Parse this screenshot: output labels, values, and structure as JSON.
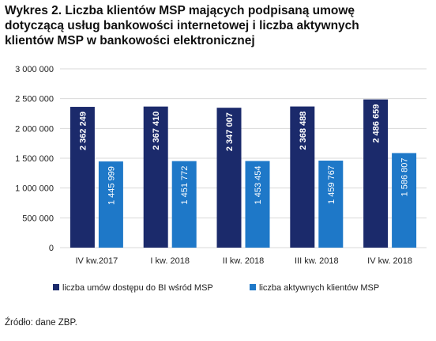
{
  "title_lines": [
    "Wykres 2. Liczba klientów MSP mających podpisaną umowę",
    "dotyczącą usług bankowości internetowej i liczba aktywnych",
    "klientów MSP w bankowości elektronicznej"
  ],
  "source": "Źródło: dane ZBP.",
  "colors": {
    "series1": "#1b2a6b",
    "series2": "#1e78c8",
    "grid": "#d9d9d9",
    "plot_bg": "#ffffff"
  },
  "chart_data": {
    "type": "bar",
    "categories": [
      "IV kw.2017",
      "I kw. 2018",
      "II  kw. 2018",
      "III kw. 2018",
      "IV kw. 2018"
    ],
    "series": [
      {
        "name": "liczba umów dostępu do BI wśród MSP",
        "values": [
          2362249,
          2367410,
          2347007,
          2368488,
          2486659
        ],
        "labels": [
          "2 362 249",
          "2 367 410",
          "2 347 007",
          "2 368 488",
          "2 486 659"
        ]
      },
      {
        "name": "liczba aktywnych klientów MSP",
        "values": [
          1445999,
          1451772,
          1453454,
          1459767,
          1586807
        ],
        "labels": [
          "1 445 999",
          "1 451 772",
          "1 453 454",
          "1 459 767",
          "1 586 807"
        ]
      }
    ],
    "ylim": [
      0,
      3000000
    ],
    "yticks": [
      0,
      500000,
      1000000,
      1500000,
      2000000,
      2500000,
      3000000
    ],
    "ytick_labels": [
      "0",
      "500 000",
      "1 000 000",
      "1 500 000",
      "2 000 000",
      "2 500 000",
      "3 000 000"
    ],
    "grid": true,
    "legend_position": "bottom"
  }
}
